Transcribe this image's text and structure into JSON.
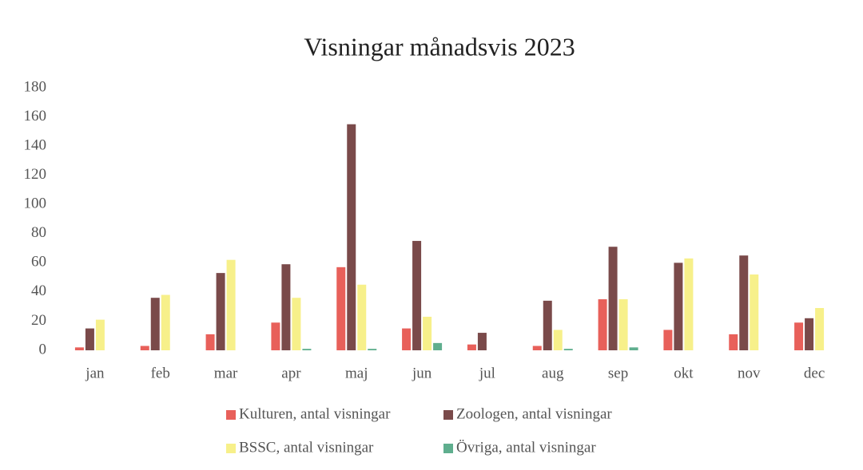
{
  "chart_data": {
    "type": "bar",
    "title": "Visningar månadsvis 2023",
    "categories": [
      "jan",
      "feb",
      "mar",
      "apr",
      "maj",
      "jun",
      "jul",
      "aug",
      "sep",
      "okt",
      "nov",
      "dec"
    ],
    "series": [
      {
        "name": "Kulturen, antal visningar",
        "color": "#e8605a",
        "values": [
          2,
          3,
          11,
          19,
          57,
          15,
          4,
          3,
          35,
          14,
          11,
          19
        ]
      },
      {
        "name": "Zoologen, antal visningar",
        "color": "#7a4a4a",
        "values": [
          15,
          36,
          53,
          59,
          155,
          75,
          12,
          34,
          71,
          60,
          65,
          22
        ]
      },
      {
        "name": "BSSC, antal visningar",
        "color": "#f7f08a",
        "values": [
          21,
          38,
          62,
          36,
          45,
          23,
          0,
          14,
          35,
          63,
          52,
          29
        ]
      },
      {
        "name": "Övriga, antal visningar",
        "color": "#5fae8e",
        "values": [
          0,
          0,
          0,
          1,
          1,
          5,
          0,
          1,
          2,
          0,
          0,
          0
        ]
      }
    ],
    "ylim": [
      0,
      180
    ],
    "yticks": [
      0,
      20,
      40,
      60,
      80,
      100,
      120,
      140,
      160,
      180
    ],
    "grid": false,
    "legend": "bottom"
  }
}
